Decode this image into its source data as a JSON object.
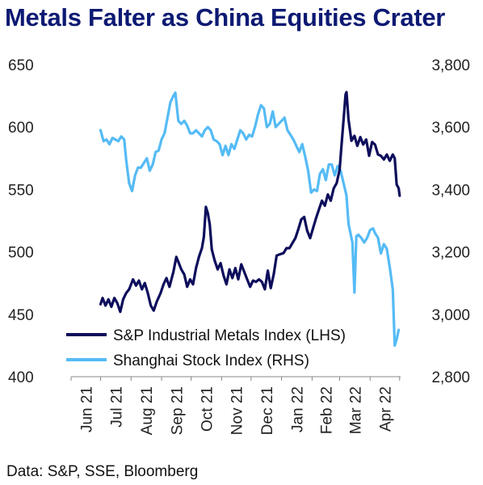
{
  "title": "Metals Falter as China Equities Crater",
  "source": "Data: S&P, SSE, Bloomberg",
  "colors": {
    "title": "#0d1a73",
    "metals": "#0d0d5c",
    "shanghai": "#55bbf5"
  },
  "chart_data": {
    "type": "line",
    "title": "Metals Falter as China Equities Crater",
    "x_ticks": [
      "Jun 21",
      "Jul 21",
      "Aug 21",
      "Sep 21",
      "Oct 21",
      "Nov 21",
      "Dec 21",
      "Jan 22",
      "Feb 22",
      "Mar 22",
      "Apr 22"
    ],
    "x_range": [
      "2021-06-01",
      "2022-05-02"
    ],
    "y_left": {
      "ticks": [
        "650",
        "600",
        "550",
        "500",
        "450",
        "400"
      ],
      "range": [
        400,
        650
      ]
    },
    "y_right": {
      "ticks": [
        "3,800",
        "3,600",
        "3,400",
        "3,200",
        "3,000",
        "2,800"
      ],
      "range": [
        2800,
        3800
      ]
    },
    "legend_placement": "bottom-right",
    "grid": false,
    "series": [
      {
        "name": "S&P Industrial Metals Index (LHS)",
        "axis": "left",
        "points": [
          [
            "2021-07-01",
            458
          ],
          [
            "2021-07-03",
            463
          ],
          [
            "2021-07-06",
            457
          ],
          [
            "2021-07-09",
            462
          ],
          [
            "2021-07-12",
            456
          ],
          [
            "2021-07-15",
            463
          ],
          [
            "2021-07-18",
            459
          ],
          [
            "2021-07-21",
            452
          ],
          [
            "2021-07-24",
            462
          ],
          [
            "2021-07-27",
            467
          ],
          [
            "2021-07-30",
            470
          ],
          [
            "2021-08-03",
            478
          ],
          [
            "2021-08-06",
            473
          ],
          [
            "2021-08-09",
            477
          ],
          [
            "2021-08-12",
            470
          ],
          [
            "2021-08-15",
            475
          ],
          [
            "2021-08-18",
            467
          ],
          [
            "2021-08-21",
            457
          ],
          [
            "2021-08-24",
            453
          ],
          [
            "2021-08-27",
            460
          ],
          [
            "2021-08-31",
            467
          ],
          [
            "2021-09-03",
            474
          ],
          [
            "2021-09-06",
            479
          ],
          [
            "2021-09-09",
            472
          ],
          [
            "2021-09-13",
            484
          ],
          [
            "2021-09-16",
            496
          ],
          [
            "2021-09-18",
            492
          ],
          [
            "2021-09-21",
            486
          ],
          [
            "2021-09-24",
            482
          ],
          [
            "2021-09-27",
            472
          ],
          [
            "2021-09-30",
            478
          ],
          [
            "2021-10-03",
            474
          ],
          [
            "2021-10-06",
            487
          ],
          [
            "2021-10-09",
            496
          ],
          [
            "2021-10-12",
            503
          ],
          [
            "2021-10-14",
            512
          ],
          [
            "2021-10-16",
            536
          ],
          [
            "2021-10-18",
            531
          ],
          [
            "2021-10-20",
            522
          ],
          [
            "2021-10-22",
            502
          ],
          [
            "2021-10-25",
            493
          ],
          [
            "2021-10-28",
            486
          ],
          [
            "2021-10-31",
            491
          ],
          [
            "2021-11-03",
            481
          ],
          [
            "2021-11-06",
            474
          ],
          [
            "2021-11-09",
            486
          ],
          [
            "2021-11-12",
            479
          ],
          [
            "2021-11-15",
            487
          ],
          [
            "2021-11-18",
            478
          ],
          [
            "2021-11-21",
            490
          ],
          [
            "2021-11-24",
            484
          ],
          [
            "2021-11-27",
            478
          ],
          [
            "2021-11-30",
            472
          ],
          [
            "2021-12-03",
            477
          ],
          [
            "2021-12-06",
            476
          ],
          [
            "2021-12-09",
            478
          ],
          [
            "2021-12-12",
            476
          ],
          [
            "2021-12-15",
            470
          ],
          [
            "2021-12-18",
            485
          ],
          [
            "2021-12-21",
            471
          ],
          [
            "2021-12-24",
            482
          ],
          [
            "2021-12-27",
            497
          ],
          [
            "2021-12-30",
            498
          ],
          [
            "2022-01-03",
            499
          ],
          [
            "2022-01-06",
            503
          ],
          [
            "2022-01-09",
            503
          ],
          [
            "2022-01-12",
            507
          ],
          [
            "2022-01-15",
            511
          ],
          [
            "2022-01-18",
            518
          ],
          [
            "2022-01-21",
            526
          ],
          [
            "2022-01-24",
            528
          ],
          [
            "2022-01-27",
            517
          ],
          [
            "2022-01-30",
            511
          ],
          [
            "2022-02-02",
            519
          ],
          [
            "2022-02-05",
            527
          ],
          [
            "2022-02-08",
            534
          ],
          [
            "2022-02-11",
            541
          ],
          [
            "2022-02-14",
            537
          ],
          [
            "2022-02-17",
            546
          ],
          [
            "2022-02-20",
            541
          ],
          [
            "2022-02-23",
            551
          ],
          [
            "2022-02-26",
            555
          ],
          [
            "2022-03-01",
            566
          ],
          [
            "2022-03-03",
            586
          ],
          [
            "2022-03-05",
            606
          ],
          [
            "2022-03-07",
            626
          ],
          [
            "2022-03-08",
            628
          ],
          [
            "2022-03-10",
            606
          ],
          [
            "2022-03-13",
            589
          ],
          [
            "2022-03-16",
            593
          ],
          [
            "2022-03-19",
            585
          ],
          [
            "2022-03-22",
            592
          ],
          [
            "2022-03-25",
            586
          ],
          [
            "2022-03-28",
            590
          ],
          [
            "2022-03-31",
            577
          ],
          [
            "2022-04-03",
            588
          ],
          [
            "2022-04-06",
            586
          ],
          [
            "2022-04-09",
            578
          ],
          [
            "2022-04-12",
            577
          ],
          [
            "2022-04-15",
            574
          ],
          [
            "2022-04-18",
            578
          ],
          [
            "2022-04-21",
            573
          ],
          [
            "2022-04-24",
            578
          ],
          [
            "2022-04-26",
            575
          ],
          [
            "2022-04-28",
            554
          ],
          [
            "2022-04-30",
            551
          ],
          [
            "2022-05-01",
            545
          ]
        ]
      },
      {
        "name": "Shanghai Stock Index (RHS)",
        "axis": "right",
        "points": [
          [
            "2021-07-01",
            3590
          ],
          [
            "2021-07-04",
            3555
          ],
          [
            "2021-07-07",
            3560
          ],
          [
            "2021-07-10",
            3545
          ],
          [
            "2021-07-13",
            3565
          ],
          [
            "2021-07-16",
            3560
          ],
          [
            "2021-07-19",
            3555
          ],
          [
            "2021-07-22",
            3570
          ],
          [
            "2021-07-25",
            3560
          ],
          [
            "2021-07-27",
            3495
          ],
          [
            "2021-07-30",
            3420
          ],
          [
            "2021-08-02",
            3395
          ],
          [
            "2021-08-05",
            3445
          ],
          [
            "2021-08-08",
            3470
          ],
          [
            "2021-08-11",
            3470
          ],
          [
            "2021-08-14",
            3485
          ],
          [
            "2021-08-17",
            3500
          ],
          [
            "2021-08-20",
            3460
          ],
          [
            "2021-08-23",
            3480
          ],
          [
            "2021-08-26",
            3520
          ],
          [
            "2021-08-29",
            3525
          ],
          [
            "2021-09-01",
            3560
          ],
          [
            "2021-09-04",
            3580
          ],
          [
            "2021-09-07",
            3630
          ],
          [
            "2021-09-10",
            3680
          ],
          [
            "2021-09-13",
            3700
          ],
          [
            "2021-09-15",
            3710
          ],
          [
            "2021-09-18",
            3620
          ],
          [
            "2021-09-21",
            3610
          ],
          [
            "2021-09-24",
            3620
          ],
          [
            "2021-09-27",
            3605
          ],
          [
            "2021-09-30",
            3580
          ],
          [
            "2021-10-03",
            3580
          ],
          [
            "2021-10-06",
            3590
          ],
          [
            "2021-10-09",
            3580
          ],
          [
            "2021-10-12",
            3570
          ],
          [
            "2021-10-15",
            3590
          ],
          [
            "2021-10-18",
            3600
          ],
          [
            "2021-10-21",
            3590
          ],
          [
            "2021-10-24",
            3560
          ],
          [
            "2021-10-27",
            3555
          ],
          [
            "2021-10-30",
            3545
          ],
          [
            "2021-11-02",
            3510
          ],
          [
            "2021-11-05",
            3540
          ],
          [
            "2021-11-08",
            3510
          ],
          [
            "2021-11-11",
            3545
          ],
          [
            "2021-11-14",
            3530
          ],
          [
            "2021-11-17",
            3560
          ],
          [
            "2021-11-20",
            3590
          ],
          [
            "2021-11-23",
            3580
          ],
          [
            "2021-11-26",
            3560
          ],
          [
            "2021-11-29",
            3575
          ],
          [
            "2021-12-02",
            3570
          ],
          [
            "2021-12-05",
            3600
          ],
          [
            "2021-12-08",
            3640
          ],
          [
            "2021-12-11",
            3670
          ],
          [
            "2021-12-14",
            3660
          ],
          [
            "2021-12-17",
            3600
          ],
          [
            "2021-12-20",
            3610
          ],
          [
            "2021-12-23",
            3650
          ],
          [
            "2021-12-26",
            3600
          ],
          [
            "2021-12-29",
            3610
          ],
          [
            "2022-01-01",
            3620
          ],
          [
            "2022-01-04",
            3630
          ],
          [
            "2022-01-07",
            3590
          ],
          [
            "2022-01-10",
            3575
          ],
          [
            "2022-01-13",
            3560
          ],
          [
            "2022-01-16",
            3540
          ],
          [
            "2022-01-19",
            3520
          ],
          [
            "2022-01-22",
            3545
          ],
          [
            "2022-01-25",
            3505
          ],
          [
            "2022-01-28",
            3460
          ],
          [
            "2022-01-31",
            3390
          ],
          [
            "2022-02-03",
            3400
          ],
          [
            "2022-02-06",
            3395
          ],
          [
            "2022-02-09",
            3450
          ],
          [
            "2022-02-12",
            3465
          ],
          [
            "2022-02-15",
            3430
          ],
          [
            "2022-02-18",
            3480
          ],
          [
            "2022-02-21",
            3480
          ],
          [
            "2022-02-24",
            3445
          ],
          [
            "2022-02-27",
            3475
          ],
          [
            "2022-03-02",
            3460
          ],
          [
            "2022-03-05",
            3420
          ],
          [
            "2022-03-08",
            3380
          ],
          [
            "2022-03-10",
            3290
          ],
          [
            "2022-03-12",
            3260
          ],
          [
            "2022-03-14",
            3230
          ],
          [
            "2022-03-16",
            3070
          ],
          [
            "2022-03-18",
            3250
          ],
          [
            "2022-03-20",
            3255
          ],
          [
            "2022-03-23",
            3245
          ],
          [
            "2022-03-26",
            3230
          ],
          [
            "2022-03-29",
            3245
          ],
          [
            "2022-04-01",
            3270
          ],
          [
            "2022-04-04",
            3275
          ],
          [
            "2022-04-06",
            3260
          ],
          [
            "2022-04-09",
            3245
          ],
          [
            "2022-04-12",
            3195
          ],
          [
            "2022-04-15",
            3225
          ],
          [
            "2022-04-18",
            3210
          ],
          [
            "2022-04-21",
            3150
          ],
          [
            "2022-04-24",
            3080
          ],
          [
            "2022-04-26",
            2900
          ],
          [
            "2022-04-28",
            2920
          ],
          [
            "2022-04-30",
            2950
          ]
        ]
      }
    ]
  }
}
